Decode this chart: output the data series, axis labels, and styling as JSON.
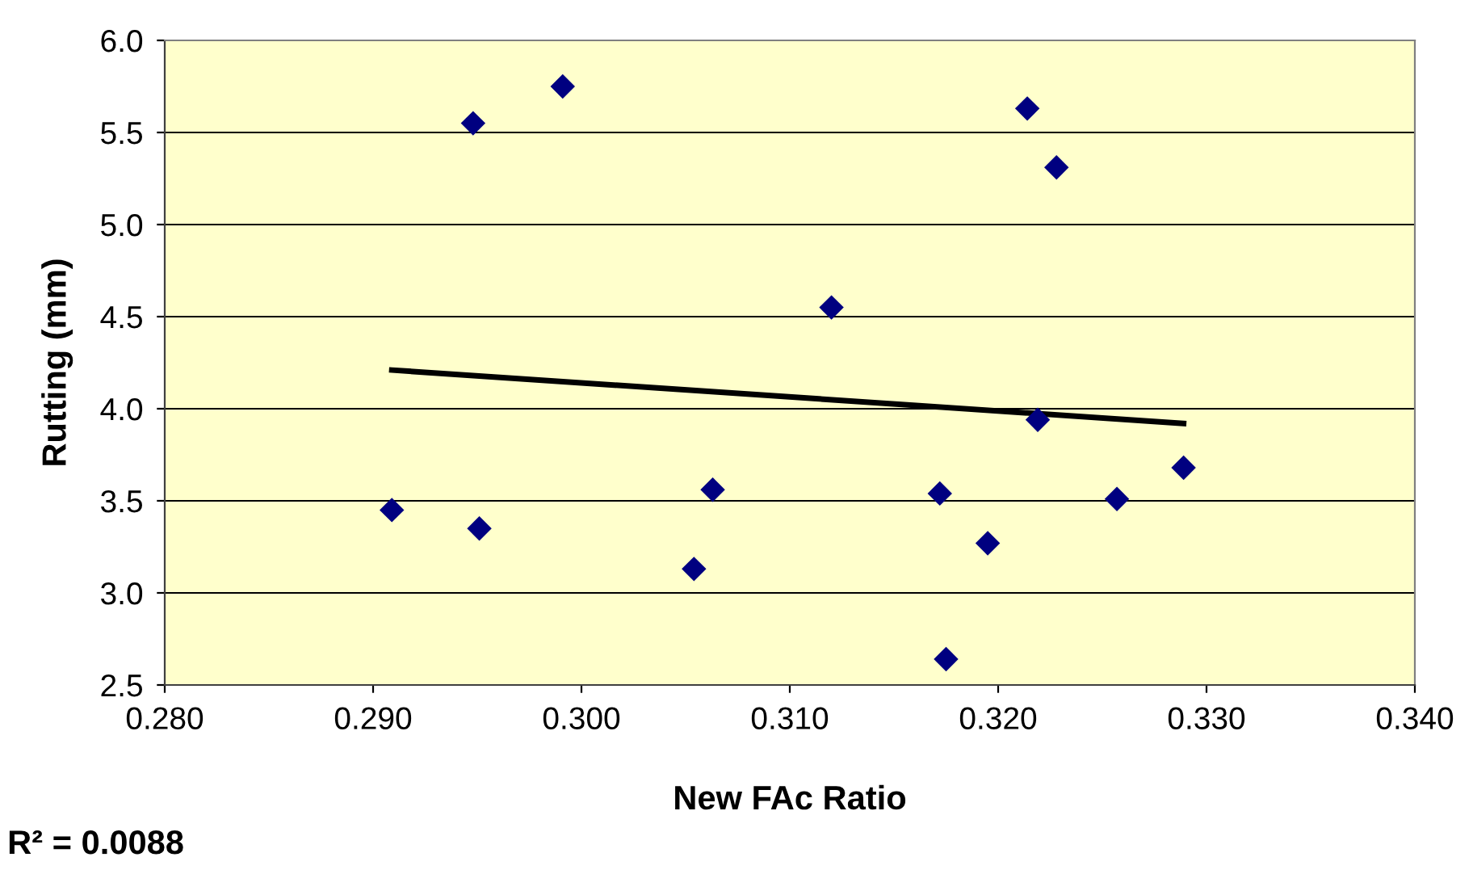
{
  "chart_data": {
    "type": "scatter",
    "xlabel": "New FAc Ratio",
    "ylabel": "Rutting (mm)",
    "series": [
      {
        "color": "#000080",
        "marker": "diamond",
        "x": [
          0.2909,
          0.2948,
          0.2951,
          0.2991,
          0.3054,
          0.3063,
          0.312,
          0.3172,
          0.3175,
          0.3195,
          0.3214,
          0.3219,
          0.3228,
          0.3257,
          0.3289
        ],
        "values": [
          3.45,
          5.55,
          3.35,
          5.75,
          3.13,
          3.56,
          4.55,
          3.54,
          2.64,
          3.27,
          5.63,
          3.94,
          5.31,
          3.51,
          3.68
        ]
      },
      {
        "type": "line",
        "color": "#000000",
        "marker": "none",
        "x": [
          0.2909,
          0.3289
        ],
        "values": [
          4.21,
          3.92
        ]
      }
    ],
    "xlim": [
      0.28,
      0.34
    ],
    "xticks": [
      {
        "value": 0.28,
        "label": "0.280"
      },
      {
        "value": 0.29,
        "label": "0.290"
      },
      {
        "value": 0.3,
        "label": "0.300"
      },
      {
        "value": 0.31,
        "label": "0.310"
      },
      {
        "value": 0.32,
        "label": "0.320"
      },
      {
        "value": 0.33,
        "label": "0.330"
      },
      {
        "value": 0.34,
        "label": "0.340"
      }
    ],
    "ylim": [
      2.5,
      6.0
    ],
    "yticks": [
      {
        "value": 2.5,
        "label": "2.5"
      },
      {
        "value": 3.0,
        "label": "3.0"
      },
      {
        "value": 3.5,
        "label": "3.5"
      },
      {
        "value": 4.0,
        "label": "4.0"
      },
      {
        "value": 4.5,
        "label": "4.5"
      },
      {
        "value": 5.0,
        "label": "5.0"
      },
      {
        "value": 5.5,
        "label": "5.5"
      },
      {
        "value": 6.0,
        "label": "6.0"
      }
    ],
    "grid": "y",
    "legend": false,
    "annotations": [
      "R² = 0.0088"
    ]
  }
}
